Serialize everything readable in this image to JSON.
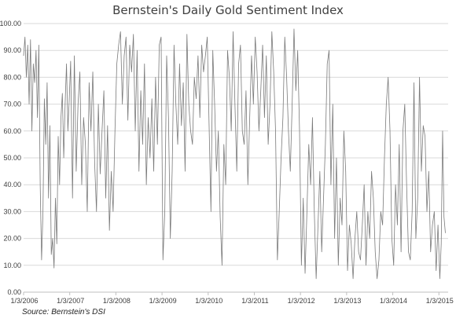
{
  "chart_data": {
    "type": "line",
    "title": "Bernstein's Daily Gold Sentiment Index",
    "xlabel": "",
    "ylabel": "",
    "ylim": [
      0,
      100
    ],
    "yticks": [
      "0.00",
      "10.00",
      "20.00",
      "30.00",
      "40.00",
      "50.00",
      "60.00",
      "70.00",
      "80.00",
      "90.00",
      "100.00"
    ],
    "xticks": [
      "1/3/2006",
      "1/3/2007",
      "1/3/2008",
      "1/3/2009",
      "1/3/2010",
      "1/3/2011",
      "1/3/2012",
      "1/3/2013",
      "1/3/2014",
      "1/3/2015"
    ],
    "xtick_years": [
      2006,
      2007,
      2008,
      2009,
      2010,
      2011,
      2012,
      2013,
      2014,
      2015
    ],
    "grid": true,
    "legend": "none",
    "series": [
      {
        "color": "#7a7a7a",
        "x": [
          2006.0,
          2006.03,
          2006.06,
          2006.09,
          2006.12,
          2006.15,
          2006.18,
          2006.21,
          2006.24,
          2006.27,
          2006.3,
          2006.33,
          2006.36,
          2006.39,
          2006.42,
          2006.45,
          2006.48,
          2006.51,
          2006.54,
          2006.57,
          2006.6,
          2006.63,
          2006.66,
          2006.69,
          2006.72,
          2006.75,
          2006.78,
          2006.81,
          2006.84,
          2006.87,
          2006.9,
          2006.93,
          2006.96,
          2006.99,
          2007.02,
          2007.06,
          2007.1,
          2007.14,
          2007.18,
          2007.22,
          2007.26,
          2007.3,
          2007.34,
          2007.38,
          2007.42,
          2007.46,
          2007.5,
          2007.54,
          2007.58,
          2007.62,
          2007.66,
          2007.7,
          2007.74,
          2007.78,
          2007.82,
          2007.86,
          2007.9,
          2007.94,
          2007.98,
          2008.02,
          2008.06,
          2008.1,
          2008.14,
          2008.18,
          2008.22,
          2008.26,
          2008.3,
          2008.34,
          2008.38,
          2008.42,
          2008.46,
          2008.5,
          2008.54,
          2008.58,
          2008.62,
          2008.66,
          2008.7,
          2008.74,
          2008.78,
          2008.82,
          2008.86,
          2008.9,
          2008.94,
          2008.98,
          2009.02,
          2009.06,
          2009.1,
          2009.14,
          2009.18,
          2009.22,
          2009.26,
          2009.3,
          2009.34,
          2009.38,
          2009.42,
          2009.46,
          2009.5,
          2009.54,
          2009.58,
          2009.62,
          2009.66,
          2009.7,
          2009.74,
          2009.78,
          2009.82,
          2009.86,
          2009.9,
          2009.94,
          2009.98,
          2010.02,
          2010.06,
          2010.1,
          2010.14,
          2010.18,
          2010.22,
          2010.26,
          2010.3,
          2010.34,
          2010.38,
          2010.42,
          2010.46,
          2010.5,
          2010.54,
          2010.58,
          2010.62,
          2010.66,
          2010.7,
          2010.74,
          2010.78,
          2010.82,
          2010.86,
          2010.9,
          2010.94,
          2010.98,
          2011.02,
          2011.06,
          2011.1,
          2011.14,
          2011.18,
          2011.22,
          2011.26,
          2011.3,
          2011.34,
          2011.38,
          2011.42,
          2011.46,
          2011.5,
          2011.54,
          2011.58,
          2011.62,
          2011.66,
          2011.7,
          2011.74,
          2011.78,
          2011.82,
          2011.86,
          2011.9,
          2011.94,
          2011.98,
          2012.02,
          2012.06,
          2012.1,
          2012.14,
          2012.18,
          2012.22,
          2012.26,
          2012.3,
          2012.34,
          2012.38,
          2012.42,
          2012.46,
          2012.5,
          2012.54,
          2012.58,
          2012.62,
          2012.66,
          2012.7,
          2012.74,
          2012.78,
          2012.82,
          2012.86,
          2012.9,
          2012.94,
          2012.98,
          2013.02,
          2013.06,
          2013.1,
          2013.14,
          2013.18,
          2013.22,
          2013.26,
          2013.3,
          2013.34,
          2013.38,
          2013.42,
          2013.46,
          2013.5,
          2013.54,
          2013.58,
          2013.62,
          2013.66,
          2013.7,
          2013.74,
          2013.78,
          2013.82,
          2013.86,
          2013.9,
          2013.94,
          2013.98,
          2014.02,
          2014.06,
          2014.1,
          2014.14,
          2014.18,
          2014.22,
          2014.26,
          2014.3,
          2014.34,
          2014.38,
          2014.42,
          2014.46,
          2014.5,
          2014.54,
          2014.58,
          2014.62,
          2014.66,
          2014.7,
          2014.74,
          2014.78,
          2014.82,
          2014.86,
          2014.9,
          2014.94,
          2014.98,
          2015.02,
          2015.05,
          2015.08,
          2015.11,
          2015.14
        ],
        "values": [
          88,
          95,
          80,
          92,
          70,
          94,
          60,
          85,
          78,
          90,
          65,
          92,
          40,
          12,
          30,
          72,
          55,
          78,
          35,
          62,
          14,
          20,
          9,
          35,
          18,
          58,
          40,
          65,
          74,
          50,
          70,
          85,
          60,
          72,
          86,
          35,
          88,
          45,
          70,
          82,
          40,
          65,
          55,
          30,
          78,
          60,
          82,
          48,
          30,
          70,
          44,
          60,
          75,
          35,
          62,
          23,
          45,
          30,
          60,
          85,
          92,
          97,
          70,
          88,
          95,
          64,
          92,
          82,
          96,
          60,
          90,
          45,
          75,
          55,
          85,
          40,
          65,
          50,
          72,
          45,
          80,
          55,
          92,
          95,
          12,
          30,
          88,
          65,
          20,
          45,
          92,
          70,
          55,
          85,
          62,
          78,
          45,
          96,
          70,
          60,
          55,
          80,
          72,
          88,
          65,
          92,
          82,
          88,
          95,
          62,
          30,
          90,
          70,
          45,
          60,
          28,
          10,
          55,
          40,
          90,
          80,
          60,
          97,
          70,
          45,
          85,
          92,
          60,
          55,
          75,
          40,
          65,
          88,
          70,
          95,
          82,
          60,
          75,
          92,
          65,
          88,
          55,
          70,
          97,
          82,
          60,
          12,
          30,
          50,
          65,
          95,
          80,
          60,
          45,
          70,
          98,
          75,
          90,
          60,
          10,
          35,
          7,
          30,
          55,
          40,
          65,
          30,
          5,
          25,
          45,
          15,
          35,
          55,
          85,
          90,
          40,
          70,
          20,
          50,
          10,
          35,
          25,
          60,
          45,
          8,
          25,
          18,
          5,
          20,
          30,
          15,
          12,
          25,
          40,
          10,
          30,
          20,
          45,
          35,
          15,
          5,
          12,
          30,
          25,
          50,
          70,
          80,
          60,
          20,
          10,
          40,
          25,
          55,
          15,
          60,
          70,
          40,
          15,
          12,
          30,
          78,
          20,
          35,
          80,
          45,
          62,
          58,
          30,
          45,
          15,
          25,
          30,
          8,
          25,
          5,
          18,
          60,
          28,
          22
        ]
      }
    ]
  },
  "source_note": "Source: Bernstein's DSI"
}
